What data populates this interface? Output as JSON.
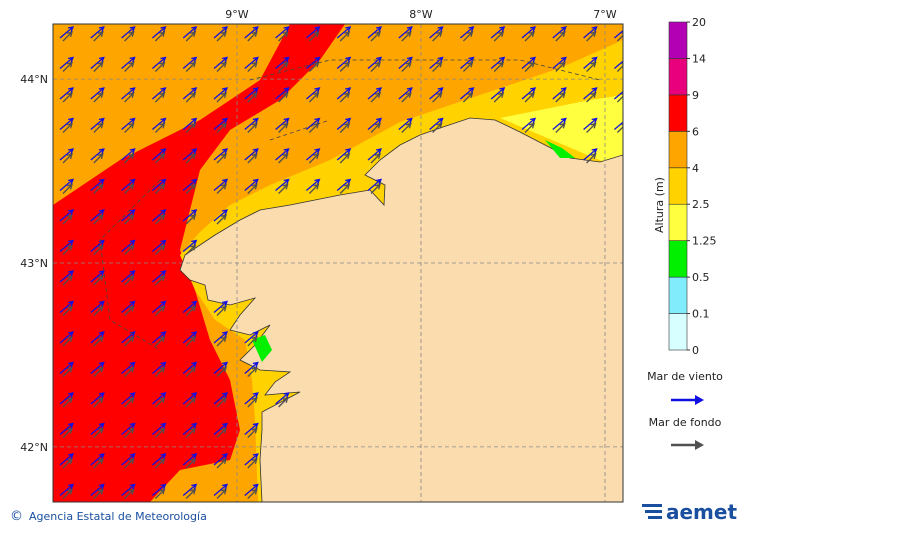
{
  "map": {
    "lon_lim": [
      -10,
      -6.902
    ],
    "lat_lim": [
      41.7,
      44.3
    ],
    "lon_ticks": [
      {
        "value": -9,
        "label": "9°W"
      },
      {
        "value": -8,
        "label": "8°W"
      },
      {
        "value": -7,
        "label": "7°W"
      }
    ],
    "lat_ticks": [
      {
        "value": 44,
        "label": "44°N"
      },
      {
        "value": 43,
        "label": "43°N"
      },
      {
        "value": 42,
        "label": "42°N"
      }
    ]
  },
  "colorbar": {
    "title": "Altura (m)",
    "levels": [
      0,
      0.1,
      0.5,
      1.25,
      2.5,
      4,
      6,
      9,
      14,
      20
    ],
    "colors": [
      "#d8ffff",
      "#80ecfc",
      "#00f000",
      "#ffff40",
      "#ffd200",
      "#ffa500",
      "#ff0000",
      "#e8007c",
      "#b400b4"
    ]
  },
  "legend": [
    {
      "label": "Mar de viento",
      "color": "#1010e0"
    },
    {
      "label": "Mar de fondo",
      "color": "#505050"
    }
  ],
  "footer": {
    "copyright": "©",
    "agency": "Agencia Estatal de Meteorología",
    "logo": "aemet"
  }
}
